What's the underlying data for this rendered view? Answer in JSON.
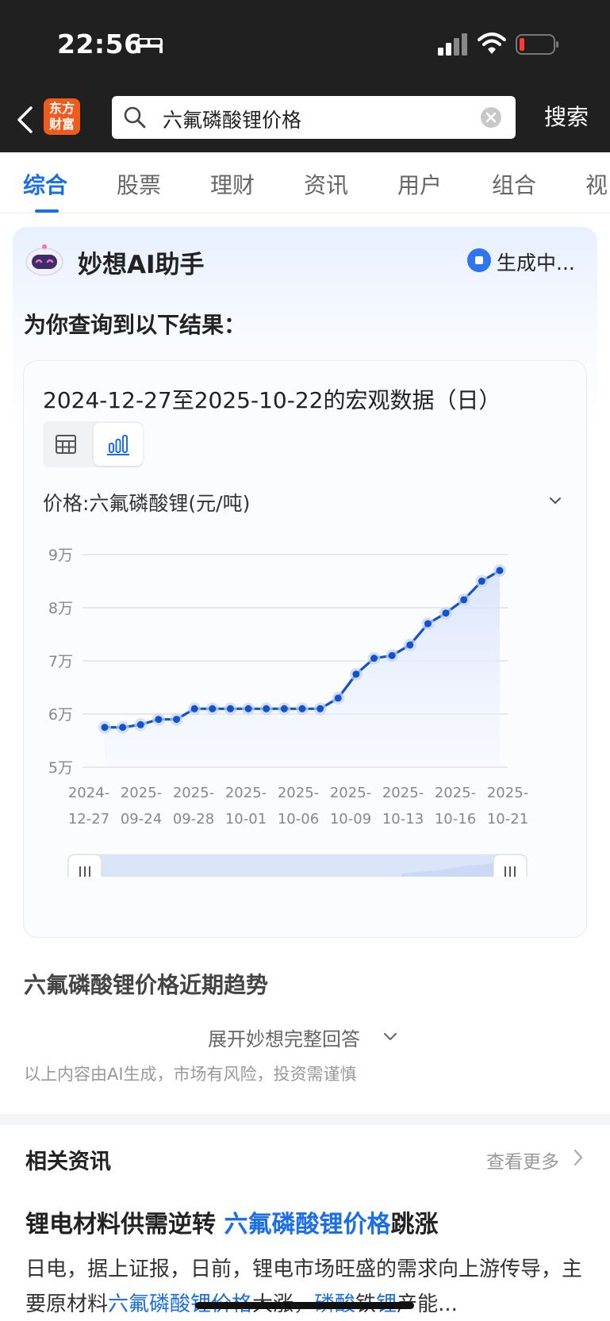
{
  "status_bar": {
    "time": "22:56"
  },
  "header": {
    "logo_line1": "东方",
    "logo_line2": "财富",
    "search_query": "六氟磷酸锂价格",
    "search_button": "搜索"
  },
  "tabs": [
    {
      "label": "综合",
      "active": true
    },
    {
      "label": "股票"
    },
    {
      "label": "理财"
    },
    {
      "label": "资讯"
    },
    {
      "label": "用户"
    },
    {
      "label": "组合"
    },
    {
      "label": "视"
    }
  ],
  "ai_card": {
    "title": "妙想AI助手",
    "status": "生成中...",
    "subtitle": "为你查询到以下结果：",
    "chart_title": "2024-12-27至2025-10-22的宏观数据（日）",
    "series_select": "价格:六氟磷酸锂(元/吨)",
    "section_heading": "六氟磷酸锂价格近期趋势",
    "expand_link": "展开妙想完整回答",
    "disclaimer": "以上内容由AI生成，市场有风险，投资需谨慎"
  },
  "chart_data": {
    "type": "line",
    "title": "2024-12-27至2025-10-22的宏观数据（日）",
    "series": [
      {
        "name": "价格:六氟磷酸锂(元/吨)",
        "values": [
          57500,
          57500,
          58000,
          59000,
          59000,
          61000,
          61000,
          61000,
          61000,
          61000,
          61000,
          61000,
          61000,
          63000,
          67500,
          70500,
          71000,
          73000,
          77000,
          79000,
          81500,
          85000,
          87000
        ]
      }
    ],
    "x_tick_labels": [
      [
        "2024-",
        "12-27"
      ],
      [
        "2025-",
        "09-24"
      ],
      [
        "2025-",
        "09-28"
      ],
      [
        "2025-",
        "10-01"
      ],
      [
        "2025-",
        "10-06"
      ],
      [
        "2025-",
        "10-09"
      ],
      [
        "2025-",
        "10-13"
      ],
      [
        "2025-",
        "10-16"
      ],
      [
        "2025-",
        "10-21"
      ]
    ],
    "y_ticks": [
      50000,
      60000,
      70000,
      80000,
      90000
    ],
    "y_tick_labels": [
      "5万",
      "6万",
      "7万",
      "8万",
      "9万"
    ],
    "ylim": [
      50000,
      90000
    ],
    "grid": true,
    "line_color": "#1252cc",
    "area_color": "#dfe8fb"
  },
  "news": {
    "header": "相关资讯",
    "see_more": "查看更多",
    "title_part1": "锂电材料供需逆转 ",
    "title_highlight": "六氟磷酸锂价格",
    "title_part2": "跳涨",
    "summary_part1": "日电，据上证报，日前，锂电市场旺盛的需求向上游传导，主要原材料",
    "summary_hl1": "六氟磷酸锂价格",
    "summary_part2": "大涨，",
    "summary_hl2": "磷酸",
    "summary_part3": "铁",
    "summary_hl3": "锂",
    "summary_part4": "产能..."
  },
  "colors": {
    "accent": "#1a6ee8",
    "logo": "#f05a1c",
    "header_bg": "#202020"
  }
}
